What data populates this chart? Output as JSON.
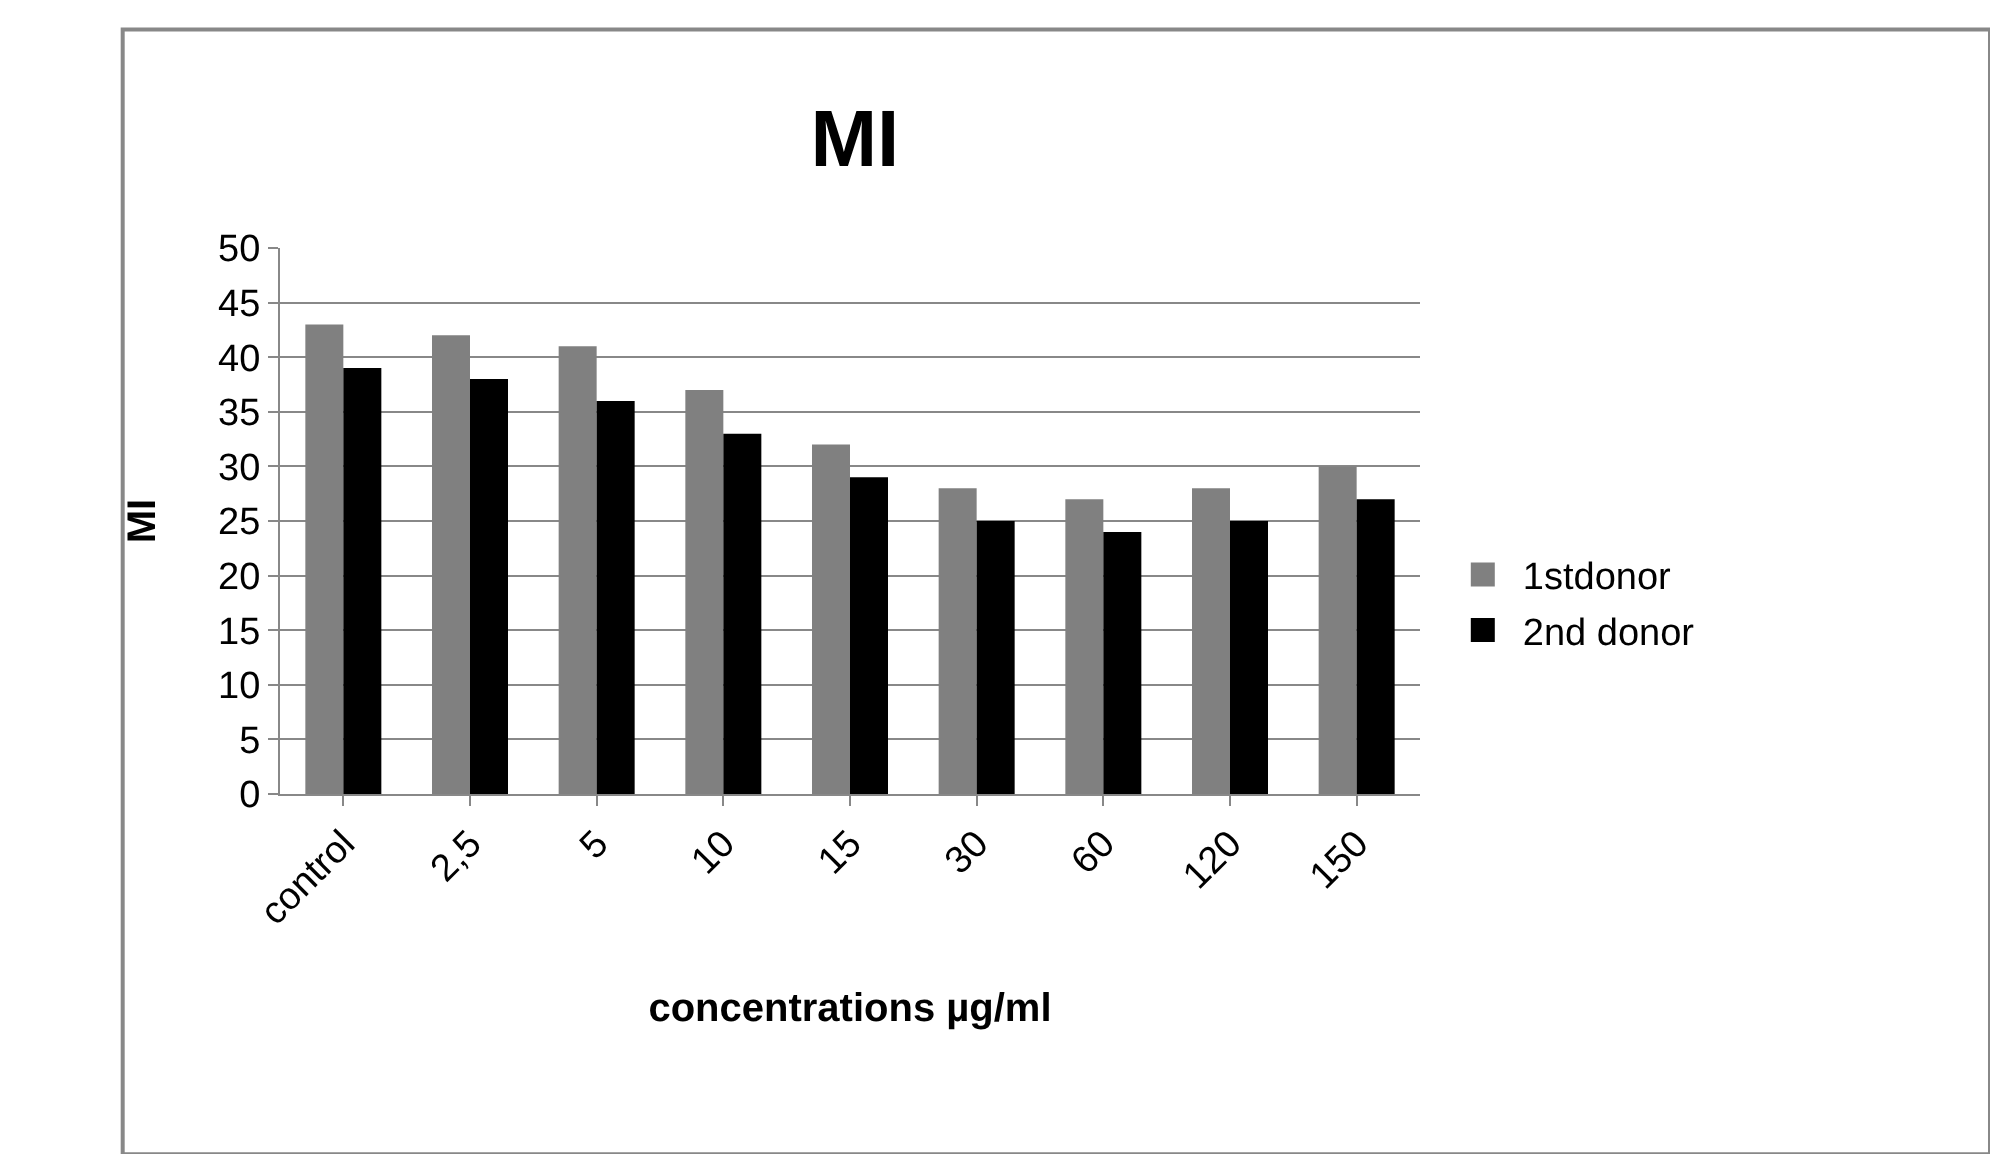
{
  "chart_data": {
    "type": "bar",
    "title": "MI",
    "xlabel": "concentrations µg/ml",
    "ylabel": "MI",
    "categories": [
      "control",
      "2,5",
      "5",
      "10",
      "15",
      "30",
      "60",
      "120",
      "150"
    ],
    "series": [
      {
        "name": "1stdonor",
        "color": "#808080",
        "values": [
          43,
          42,
          41,
          37,
          32,
          28,
          27,
          28,
          30
        ]
      },
      {
        "name": "2nd donor",
        "color": "#000000",
        "values": [
          39,
          38,
          36,
          33,
          29,
          25,
          24,
          25,
          27
        ]
      }
    ],
    "ylim": [
      0,
      50
    ],
    "yticks": [
      0,
      5,
      10,
      15,
      20,
      25,
      30,
      35,
      40,
      45,
      50
    ],
    "grid": "y",
    "legend": "right"
  }
}
